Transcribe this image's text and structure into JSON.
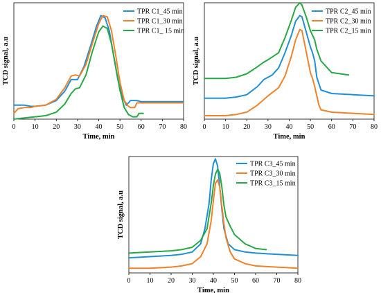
{
  "chart_data": [
    {
      "type": "line",
      "xlabel": "Time, min",
      "ylabel": "TCD signal, a.u",
      "xlim": [
        0,
        80
      ],
      "xticks": [
        0,
        10,
        20,
        30,
        40,
        50,
        60,
        70,
        80
      ],
      "ylim": [
        0,
        100
      ],
      "legend_position": "top-right",
      "series": [
        {
          "name": "TPR C1_45 min",
          "color": "#1f8fd6",
          "x": [
            0,
            5,
            8,
            10,
            15,
            20,
            24,
            27,
            30,
            33,
            36,
            39,
            41,
            43,
            45,
            47,
            49,
            51,
            53,
            54,
            55,
            56,
            57,
            58,
            60,
            70,
            80
          ],
          "y": [
            12,
            12,
            11,
            11,
            12,
            16,
            24,
            34,
            34,
            45,
            62,
            80,
            89,
            87,
            76,
            55,
            34,
            20,
            12,
            14,
            16,
            16,
            16,
            16,
            15,
            15,
            15
          ]
        },
        {
          "name": "TPR C1_30 min",
          "color": "#f0822a",
          "x": [
            0,
            2,
            5,
            8,
            10,
            15,
            20,
            24,
            27,
            29,
            31,
            34,
            37,
            40,
            42,
            44,
            46,
            48,
            50,
            52,
            54,
            55,
            56,
            57,
            58,
            60,
            70,
            80
          ],
          "y": [
            5,
            9,
            10,
            10,
            11,
            12,
            17,
            27,
            37,
            38,
            37,
            47,
            65,
            82,
            89,
            88,
            76,
            55,
            32,
            16,
            11,
            10,
            10,
            10,
            14,
            14,
            14,
            14
          ]
        },
        {
          "name": "TPR C1_ 15 min",
          "color": "#27a844",
          "x": [
            0,
            5,
            10,
            15,
            20,
            24,
            27,
            29,
            31,
            34,
            37,
            40,
            42,
            44,
            46,
            48,
            50,
            52,
            54,
            56,
            57,
            58,
            59,
            60,
            61
          ],
          "y": [
            0,
            1,
            2,
            3,
            6,
            13,
            22,
            26,
            27,
            38,
            58,
            75,
            80,
            78,
            65,
            45,
            25,
            10,
            4,
            2,
            2,
            2,
            5,
            5,
            5
          ]
        }
      ]
    },
    {
      "type": "line",
      "xlabel": "Time, min",
      "ylabel": "TCD signal, a.u",
      "xlim": [
        0,
        80
      ],
      "xticks": [
        0,
        10,
        20,
        30,
        40,
        50,
        60,
        70,
        80
      ],
      "ylim": [
        0,
        100
      ],
      "legend_position": "top-right",
      "series": [
        {
          "name": "TPR C2_45 min",
          "color": "#1f8fd6",
          "x": [
            0,
            10,
            15,
            20,
            25,
            28,
            32,
            35,
            38,
            41,
            43,
            45,
            46,
            48,
            50,
            51,
            52,
            53,
            55,
            60,
            70,
            80
          ],
          "y": [
            18,
            18,
            19,
            21,
            28,
            34,
            38,
            44,
            57,
            72,
            84,
            89,
            88,
            75,
            62,
            57,
            50,
            36,
            25,
            22,
            21,
            20
          ]
        },
        {
          "name": "TPR C2_30 min",
          "color": "#f0822a",
          "x": [
            0,
            10,
            15,
            20,
            25,
            30,
            35,
            38,
            41,
            43,
            45,
            46,
            48,
            50,
            51,
            52,
            53,
            54,
            55,
            60,
            70,
            80
          ],
          "y": [
            3,
            3,
            4,
            6,
            12,
            20,
            27,
            37,
            54,
            68,
            77,
            76,
            58,
            40,
            35,
            28,
            20,
            12,
            8,
            6,
            5,
            4
          ]
        },
        {
          "name": "TPR C2_15 min",
          "color": "#27a844",
          "x": [
            0,
            10,
            15,
            20,
            25,
            28,
            30,
            35,
            38,
            41,
            43,
            45,
            46,
            48,
            50,
            51,
            52,
            53,
            55,
            60,
            68
          ],
          "y": [
            35,
            35,
            36,
            39,
            45,
            49,
            51,
            57,
            70,
            85,
            96,
            100,
            98,
            88,
            76,
            72,
            68,
            60,
            50,
            40,
            38
          ]
        }
      ]
    },
    {
      "type": "line",
      "xlabel": "Time, min",
      "ylabel": "TCD signal, a.u",
      "xlim": [
        0,
        80
      ],
      "xticks": [
        0,
        10,
        20,
        30,
        40,
        50,
        60,
        70,
        80
      ],
      "ylim": [
        0,
        100
      ],
      "legend_position": "top-right",
      "series": [
        {
          "name": "TPR C3_45 min",
          "color": "#1f8fd6",
          "x": [
            0,
            10,
            20,
            25,
            30,
            34,
            36,
            38,
            39,
            40,
            41,
            42,
            43,
            44,
            45,
            47,
            50,
            55,
            60,
            70,
            80
          ],
          "y": [
            13,
            14,
            15,
            16,
            18,
            25,
            38,
            60,
            80,
            94,
            98,
            92,
            75,
            55,
            38,
            25,
            20,
            18,
            17,
            16,
            15
          ]
        },
        {
          "name": "TPR C3_30 min",
          "color": "#f0822a",
          "x": [
            0,
            10,
            20,
            25,
            30,
            34,
            37,
            39,
            40,
            41,
            42,
            43,
            44,
            45,
            46,
            48,
            50,
            55,
            60,
            70,
            80
          ],
          "y": [
            4,
            4,
            5,
            6,
            8,
            14,
            25,
            45,
            62,
            77,
            80,
            74,
            58,
            42,
            30,
            18,
            12,
            8,
            6,
            5,
            4
          ]
        },
        {
          "name": "TPR C3_15 min",
          "color": "#27a844",
          "x": [
            0,
            10,
            20,
            25,
            30,
            34,
            37,
            39,
            40,
            41,
            42,
            43,
            44,
            45,
            46,
            48,
            50,
            55,
            60,
            65
          ],
          "y": [
            17,
            18,
            19,
            20,
            22,
            28,
            38,
            60,
            75,
            85,
            89,
            86,
            74,
            58,
            48,
            40,
            33,
            25,
            21,
            20
          ]
        }
      ]
    }
  ]
}
